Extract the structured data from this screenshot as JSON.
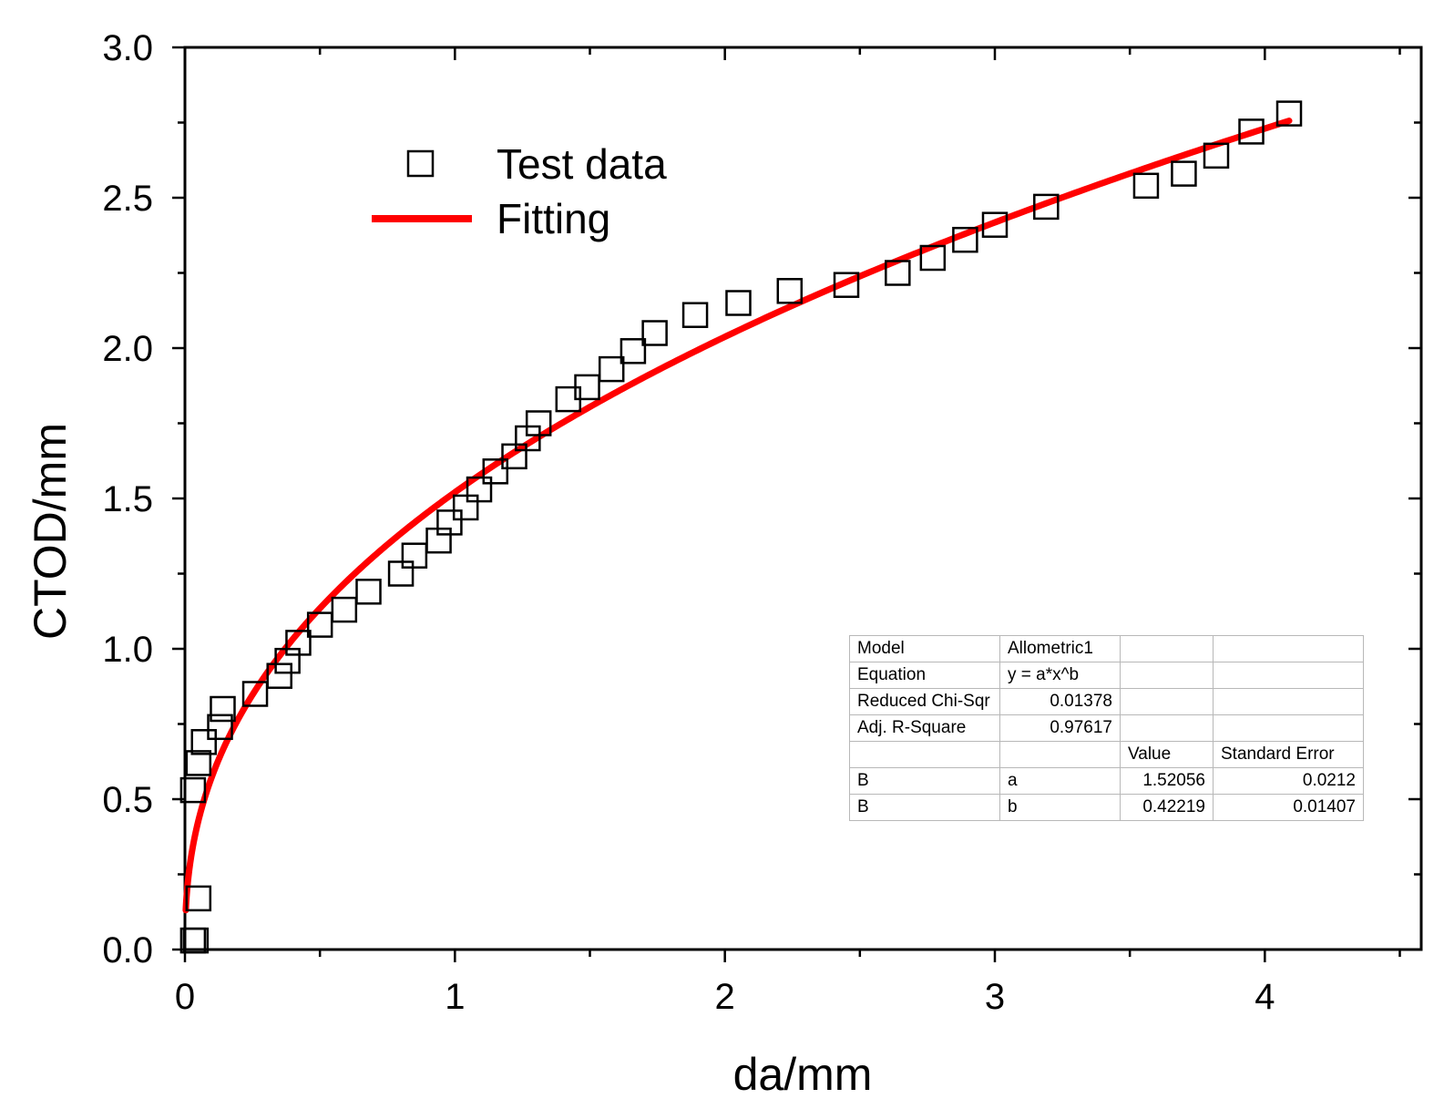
{
  "chart_data": {
    "type": "scatter",
    "title": "",
    "xlabel": "da/mm",
    "ylabel": "CTOD/mm",
    "xlim": [
      0,
      4.5
    ],
    "ylim": [
      0,
      3.0
    ],
    "xticks": [
      0,
      1,
      2,
      3,
      4
    ],
    "xtick_labels": [
      "0",
      "1",
      "2",
      "3",
      "4"
    ],
    "yticks": [
      0.0,
      0.5,
      1.0,
      1.5,
      2.0,
      2.5,
      3.0
    ],
    "ytick_labels": [
      "0.0",
      "0.5",
      "1.0",
      "1.5",
      "2.0",
      "2.5",
      "3.0"
    ],
    "grid": false,
    "legend_position": "top-left",
    "series": [
      {
        "name": "Test data",
        "kind": "scatter",
        "marker": "open-square",
        "color": "#000000",
        "x": [
          0.03,
          0.04,
          0.05,
          0.03,
          0.05,
          0.07,
          0.13,
          0.14,
          0.26,
          0.35,
          0.38,
          0.42,
          0.5,
          0.59,
          0.68,
          0.8,
          0.85,
          0.94,
          0.98,
          1.04,
          1.09,
          1.15,
          1.22,
          1.27,
          1.31,
          1.42,
          1.49,
          1.58,
          1.66,
          1.74,
          1.89,
          2.05,
          2.24,
          2.45,
          2.64,
          2.77,
          2.89,
          3.0,
          3.19,
          3.56,
          3.7,
          3.82,
          3.95,
          4.09
        ],
        "y": [
          0.03,
          0.03,
          0.17,
          0.53,
          0.62,
          0.69,
          0.74,
          0.8,
          0.85,
          0.91,
          0.96,
          1.02,
          1.08,
          1.13,
          1.19,
          1.25,
          1.31,
          1.36,
          1.42,
          1.47,
          1.53,
          1.59,
          1.64,
          1.7,
          1.75,
          1.83,
          1.87,
          1.93,
          1.99,
          2.05,
          2.11,
          2.15,
          2.19,
          2.21,
          2.25,
          2.3,
          2.36,
          2.41,
          2.47,
          2.54,
          2.58,
          2.64,
          2.72,
          2.78
        ]
      },
      {
        "name": "Fitting",
        "kind": "line",
        "color": "#ff0000",
        "model": "y = a*x^b",
        "a": 1.52056,
        "b": 0.42219,
        "x_range": [
          0.003,
          4.09
        ]
      }
    ],
    "fit_table": {
      "rows": [
        {
          "label": "Model",
          "value": "Allometric1"
        },
        {
          "label": "Equation",
          "value": "y = a*x^b"
        },
        {
          "label": "Reduced Chi-Sqr",
          "value": "0.01378"
        },
        {
          "label": "Adj. R-Square",
          "value": "0.97617"
        }
      ],
      "headers": [
        "Value",
        "Standard Error"
      ],
      "params": [
        {
          "group": "B",
          "name": "a",
          "value": "1.52056",
          "error": "0.0212"
        },
        {
          "group": "B",
          "name": "b",
          "value": "0.42219",
          "error": "0.01407"
        }
      ]
    }
  }
}
